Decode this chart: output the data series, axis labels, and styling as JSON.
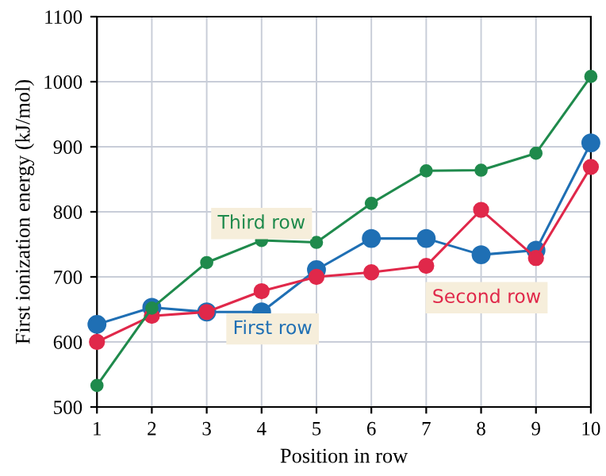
{
  "chart_data": {
    "type": "line",
    "xlabel": "Position in row",
    "ylabel": "First ionization energy (kJ/mol)",
    "x": [
      1,
      2,
      3,
      4,
      5,
      6,
      7,
      8,
      9,
      10
    ],
    "series": [
      {
        "name": "First row",
        "color": "#1f6fb4",
        "values": [
          627,
          653,
          646,
          646,
          711,
          759,
          759,
          734,
          741,
          906
        ]
      },
      {
        "name": "Second row",
        "color": "#e0284a",
        "values": [
          600,
          640,
          646,
          678,
          700,
          707,
          717,
          803,
          729,
          869
        ]
      },
      {
        "name": "Third row",
        "color": "#1f8a4c",
        "values": [
          533,
          652,
          722,
          756,
          753,
          813,
          863,
          864,
          890,
          1008
        ]
      }
    ],
    "xlim": [
      1,
      10
    ],
    "xticks": [
      1,
      2,
      3,
      4,
      5,
      6,
      7,
      8,
      9,
      10
    ],
    "ylim": [
      500,
      1100
    ],
    "yticks": [
      500,
      600,
      700,
      800,
      900,
      1000,
      1100
    ],
    "grid": true,
    "marker": "circle",
    "line_style": "solid",
    "legend": false
  }
}
